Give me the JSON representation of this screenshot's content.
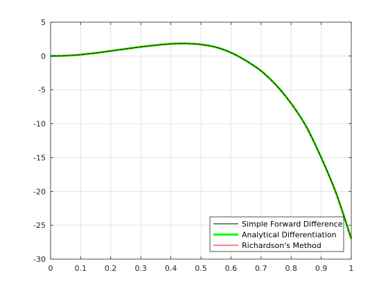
{
  "chart_data": {
    "type": "line",
    "title": "",
    "xlabel": "",
    "ylabel": "",
    "xlim": [
      0,
      1
    ],
    "ylim": [
      -30,
      5
    ],
    "grid": true,
    "x_ticks": [
      0,
      0.1,
      0.2,
      0.3,
      0.4,
      0.5,
      0.6,
      0.7,
      0.8,
      0.9,
      1
    ],
    "x_tick_labels": [
      "0",
      "0.1",
      "0.2",
      "0.3",
      "0.4",
      "0.5",
      "0.6",
      "0.7",
      "0.8",
      "0.9",
      "1"
    ],
    "y_ticks": [
      5,
      0,
      -5,
      -10,
      -15,
      -20,
      -25,
      -30
    ],
    "y_tick_labels": [
      "5",
      "0",
      "-5",
      "-10",
      "-15",
      "-20",
      "-25",
      "-30"
    ],
    "legend_position": "bottom-right",
    "x": [
      0,
      0.05,
      0.1,
      0.15,
      0.2,
      0.25,
      0.3,
      0.35,
      0.4,
      0.45,
      0.5,
      0.55,
      0.6,
      0.65,
      0.7,
      0.75,
      0.8,
      0.85,
      0.9,
      0.95,
      1
    ],
    "series": [
      {
        "name": "Simple Forward Difference",
        "color": "#000000",
        "values": [
          0,
          0.05,
          0.2,
          0.45,
          0.75,
          1.05,
          1.35,
          1.6,
          1.8,
          1.85,
          1.7,
          1.3,
          0.5,
          -0.7,
          -2.2,
          -4.3,
          -7.0,
          -10.4,
          -15.0,
          -20.3,
          -27.0
        ]
      },
      {
        "name": "Analytical Differentiation",
        "color": "#00ff00",
        "values": [
          0,
          0.05,
          0.2,
          0.45,
          0.75,
          1.05,
          1.35,
          1.6,
          1.8,
          1.85,
          1.7,
          1.3,
          0.5,
          -0.7,
          -2.2,
          -4.3,
          -7.0,
          -10.4,
          -15.0,
          -20.3,
          -27.0
        ]
      },
      {
        "name": "Richardson's Method",
        "color": "#ff0000",
        "values": [
          0,
          0.05,
          0.2,
          0.45,
          0.75,
          1.05,
          1.35,
          1.6,
          1.8,
          1.85,
          1.7,
          1.3,
          0.5,
          -0.7,
          -2.2,
          -4.3,
          -7.0,
          -10.4,
          -15.0,
          -20.3,
          -27.0
        ]
      }
    ]
  }
}
